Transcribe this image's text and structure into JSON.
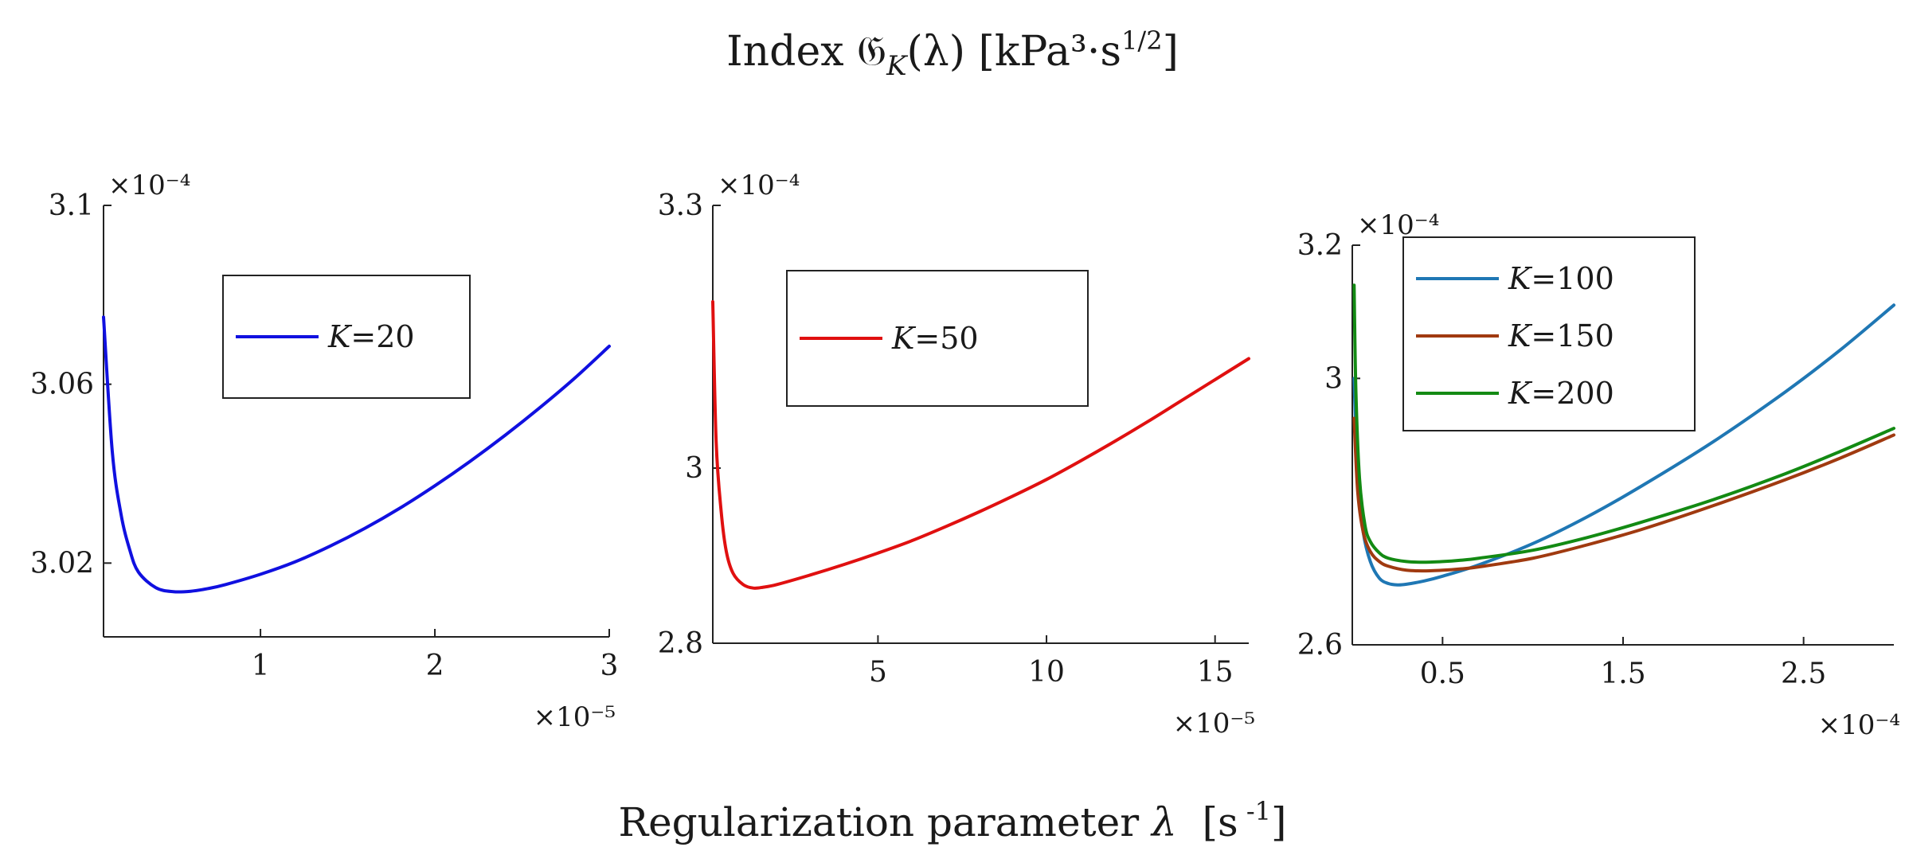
{
  "figure": {
    "title_prefix": "Index ",
    "title_symbol": "𝔊",
    "title_sub": "K",
    "title_arg": "(λ) [kPa³·s",
    "title_exp": "1/2",
    "title_suffix": "]",
    "xlabel_prefix": "Regularization parameter ",
    "xlabel_symbol": "λ",
    "xlabel_unit_open": "  [s",
    "xlabel_unit_exp": " -1",
    "xlabel_unit_close": "]"
  },
  "chart_data": [
    {
      "type": "line",
      "xlim": [
        0.1,
        3.0
      ],
      "ylim": [
        3.0035,
        3.1
      ],
      "xticks": [
        1,
        2,
        3
      ],
      "xtick_labels": [
        "1",
        "2",
        "3"
      ],
      "yticks": [
        3.02,
        3.06,
        3.1
      ],
      "ytick_labels": [
        "3.02",
        "3.06",
        "3.1"
      ],
      "x_exponent": "×10⁻⁵",
      "y_exponent": "×10⁻⁴",
      "legend_position": "upper-center",
      "series": [
        {
          "name": "K=20",
          "legend_var": "K",
          "legend_val": "=20",
          "color": "#1010e0",
          "x": [
            0.1,
            0.15,
            0.2,
            0.25,
            0.3,
            0.4,
            0.5,
            0.6,
            0.7,
            0.8,
            1.0,
            1.2,
            1.4,
            1.6,
            1.8,
            2.0,
            2.2,
            2.4,
            2.6,
            2.8,
            3.0
          ],
          "y": [
            3.075,
            3.045,
            3.031,
            3.023,
            3.018,
            3.0145,
            3.0136,
            3.0137,
            3.0143,
            3.0152,
            3.0175,
            3.0203,
            3.0238,
            3.0278,
            3.0323,
            3.0373,
            3.0427,
            3.0485,
            3.0547,
            3.0613,
            3.0685
          ]
        }
      ]
    },
    {
      "type": "line",
      "xlim": [
        0.1,
        16.0
      ],
      "ylim": [
        2.8,
        3.3
      ],
      "xticks": [
        5,
        10,
        15
      ],
      "xtick_labels": [
        "5",
        "10",
        "15"
      ],
      "yticks": [
        2.8,
        3.0,
        3.3
      ],
      "ytick_labels": [
        "2.8",
        "3",
        "3.3"
      ],
      "x_exponent": "×10⁻⁵",
      "y_exponent": "×10⁻⁴",
      "legend_position": "upper-left",
      "series": [
        {
          "name": "K=50",
          "legend_var": "K",
          "legend_val": "=50",
          "color": "#e01010",
          "x": [
            0.1,
            0.2,
            0.35,
            0.5,
            0.7,
            1.0,
            1.3,
            1.6,
            2.0,
            3.0,
            4.0,
            5.0,
            6.0,
            7.0,
            8.0,
            9.0,
            10.0,
            11.0,
            12.0,
            13.0,
            14.0,
            15.0,
            16.0
          ],
          "y": [
            3.19,
            3.03,
            2.95,
            2.905,
            2.88,
            2.867,
            2.863,
            2.864,
            2.867,
            2.878,
            2.89,
            2.903,
            2.917,
            2.933,
            2.95,
            2.968,
            2.987,
            3.008,
            3.03,
            3.053,
            3.077,
            3.101,
            3.125
          ]
        }
      ]
    },
    {
      "type": "line",
      "xlim": [
        0.0,
        3.0
      ],
      "ylim": [
        2.6,
        3.2
      ],
      "xticks": [
        0.5,
        1.5,
        2.5
      ],
      "xtick_labels": [
        "0.5",
        "1.5",
        "2.5"
      ],
      "yticks": [
        2.6,
        3.0,
        3.2
      ],
      "ytick_labels": [
        "2.6",
        "3",
        "3.2"
      ],
      "x_exponent": "×10⁻⁴",
      "y_exponent": "×10⁻⁴",
      "legend_position": "upper-center",
      "series": [
        {
          "name": "K=100",
          "legend_var": "K",
          "legend_val": "=100",
          "color": "#1f77b4",
          "x": [
            0.01,
            0.03,
            0.06,
            0.1,
            0.15,
            0.2,
            0.25,
            0.3,
            0.4,
            0.5,
            0.7,
            1.0,
            1.3,
            1.6,
            2.0,
            2.4,
            2.7,
            3.0
          ],
          "y": [
            3.0,
            2.85,
            2.77,
            2.725,
            2.7,
            2.692,
            2.69,
            2.691,
            2.696,
            2.703,
            2.72,
            2.752,
            2.792,
            2.838,
            2.905,
            2.98,
            3.042,
            3.11
          ]
        },
        {
          "name": "K=150",
          "legend_var": "K",
          "legend_val": "=150",
          "color": "#a03a10",
          "x": [
            0.01,
            0.03,
            0.06,
            0.1,
            0.15,
            0.2,
            0.3,
            0.4,
            0.5,
            0.6,
            0.7,
            1.0,
            1.3,
            1.6,
            2.0,
            2.4,
            2.7,
            3.0
          ],
          "y": [
            2.94,
            2.83,
            2.77,
            2.74,
            2.725,
            2.718,
            2.712,
            2.711,
            2.712,
            2.714,
            2.717,
            2.73,
            2.75,
            2.773,
            2.809,
            2.848,
            2.88,
            2.915
          ]
        },
        {
          "name": "K=200",
          "legend_var": "K",
          "legend_val": "=200",
          "color": "#138a13",
          "x": [
            0.01,
            0.02,
            0.04,
            0.07,
            0.1,
            0.15,
            0.2,
            0.3,
            0.4,
            0.5,
            0.6,
            0.7,
            1.0,
            1.3,
            1.6,
            2.0,
            2.4,
            2.7,
            3.0
          ],
          "y": [
            3.14,
            2.98,
            2.85,
            2.78,
            2.755,
            2.738,
            2.73,
            2.725,
            2.724,
            2.725,
            2.727,
            2.73,
            2.742,
            2.761,
            2.784,
            2.818,
            2.857,
            2.89,
            2.925
          ]
        }
      ]
    }
  ]
}
